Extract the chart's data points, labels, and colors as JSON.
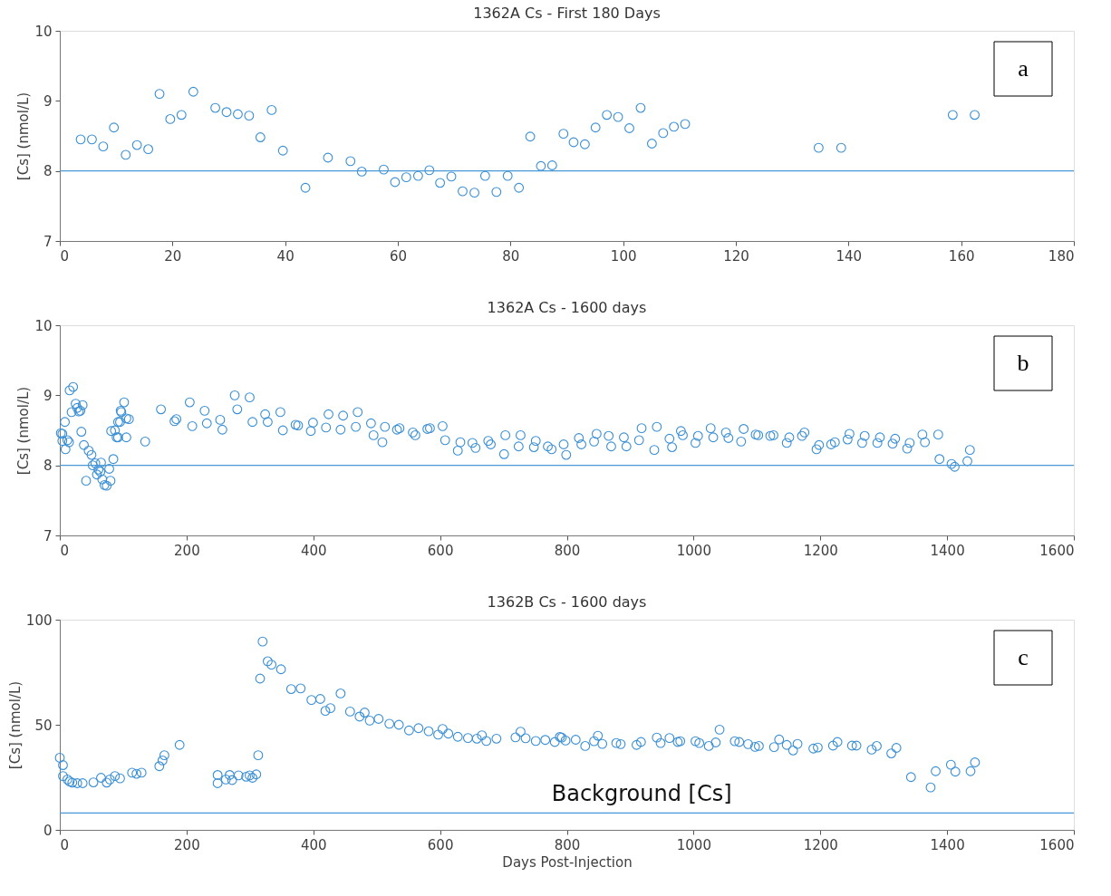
{
  "chart_data": [
    {
      "type": "scatter",
      "title": "1362A Cs - First 180 Days",
      "ylabel": "[Cs] (nmol/L)",
      "annotations": [
        "a"
      ],
      "marker": "circle",
      "grid": false,
      "xlim": [
        0,
        180
      ],
      "xticks": [
        0,
        20,
        40,
        60,
        80,
        100,
        120,
        140,
        160,
        180
      ],
      "ylim": [
        7,
        10
      ],
      "yticks": [
        7,
        8,
        9,
        10
      ],
      "ref_lines": [
        {
          "axis": "y",
          "value": 8,
          "color": "#4a98d6"
        }
      ],
      "series": [
        {
          "color": "#3a8fd4",
          "x": [
            3.7,
            5.7,
            7.7,
            9.6,
            11.7,
            13.7,
            15.7,
            17.7,
            19.6,
            21.6,
            23.7,
            27.6,
            29.6,
            31.6,
            33.6,
            35.6,
            37.6,
            39.6,
            43.6,
            47.6,
            51.6,
            53.6,
            57.5,
            59.5,
            61.5,
            63.6,
            65.6,
            67.5,
            69.5,
            71.5,
            73.6,
            75.5,
            77.5,
            79.5,
            81.5,
            83.5,
            85.4,
            87.4,
            89.4,
            91.2,
            93.2,
            95.1,
            97.1,
            99.1,
            101.1,
            103.1,
            105.1,
            107.1,
            109.0,
            111.0,
            134.7,
            138.7,
            158.5,
            162.4
          ],
          "values": [
            8.45,
            8.45,
            8.35,
            8.62,
            8.23,
            8.37,
            8.31,
            9.1,
            8.74,
            8.8,
            9.13,
            8.9,
            8.84,
            8.81,
            8.79,
            8.48,
            8.87,
            8.29,
            7.76,
            8.19,
            8.14,
            7.99,
            8.02,
            7.84,
            7.91,
            7.93,
            8.01,
            7.83,
            7.92,
            7.71,
            7.69,
            7.93,
            7.7,
            7.93,
            7.76,
            8.49,
            8.07,
            8.08,
            8.53,
            8.41,
            8.38,
            8.62,
            8.8,
            8.77,
            8.61,
            8.9,
            8.39,
            8.54,
            8.63,
            8.67,
            8.33,
            8.33,
            8.8,
            8.8
          ]
        }
      ]
    },
    {
      "type": "scatter",
      "title": "1362A Cs - 1600 days",
      "ylabel": "[Cs] (nmol/L)",
      "annotations": [
        "b"
      ],
      "marker": "circle",
      "grid": false,
      "xlim": [
        0,
        1600
      ],
      "xticks": [
        0,
        200,
        400,
        600,
        800,
        1000,
        1200,
        1400,
        1600
      ],
      "ylim": [
        7,
        10
      ],
      "yticks": [
        7,
        8,
        9,
        10
      ],
      "ref_lines": [
        {
          "axis": "y",
          "value": 8,
          "color": "#4a98d6"
        }
      ],
      "series": [
        {
          "color": "#3a8fd4",
          "x": [
            1.6,
            4,
            8,
            4,
            12,
            9,
            14.5,
            15.5,
            21,
            18.6,
            25,
            27.5,
            30,
            32.6,
            36,
            34,
            38,
            41.5,
            45.6,
            50,
            52,
            56,
            58.5,
            61,
            65,
            64,
            67,
            70.5,
            74,
            78,
            80,
            84.5,
            81,
            87,
            89.6,
            92,
            96,
            101.5,
            97,
            105,
            109,
            105,
            95,
            92,
            134.7,
            159.6,
            181,
            184,
            205,
            209,
            228.5,
            232,
            253,
            256.5,
            276,
            280,
            299.5,
            304,
            324,
            328,
            348,
            352,
            372,
            376,
            399.5,
            396,
            424,
            420,
            447,
            443,
            470,
            467,
            491,
            495,
            513,
            509,
            536,
            532,
            557,
            561,
            584,
            580,
            604,
            608,
            632,
            628,
            651,
            656,
            676,
            680,
            703,
            701,
            727,
            724,
            751,
            748,
            770,
            776,
            795,
            799,
            819,
            823,
            843,
            847,
            866,
            870,
            890,
            894,
            914,
            918,
            938,
            942,
            962,
            966,
            980,
            983,
            1003,
            1007,
            1027,
            1031,
            1051,
            1055,
            1075,
            1079,
            1098,
            1102,
            1121,
            1126,
            1147,
            1151,
            1171,
            1175,
            1194,
            1198,
            1217,
            1223,
            1243,
            1246,
            1266,
            1270,
            1290,
            1294,
            1314,
            1318,
            1337,
            1341,
            1361,
            1365,
            1386,
            1388,
            1407,
            1412,
            1432,
            1436
          ],
          "values": [
            8.46,
            8.45,
            8.62,
            8.35,
            8.36,
            8.23,
            8.33,
            9.07,
            9.12,
            8.76,
            8.88,
            8.82,
            8.77,
            8.78,
            8.86,
            8.48,
            8.29,
            7.78,
            8.21,
            8.15,
            8.0,
            8.03,
            7.87,
            7.94,
            8.04,
            7.91,
            7.8,
            7.72,
            7.71,
            7.95,
            7.78,
            8.09,
            8.49,
            8.5,
            8.4,
            8.62,
            8.78,
            8.9,
            8.76,
            8.67,
            8.66,
            8.4,
            8.62,
            8.4,
            8.34,
            8.8,
            8.63,
            8.66,
            8.9,
            8.56,
            8.78,
            8.6,
            8.65,
            8.51,
            9.0,
            8.8,
            8.97,
            8.62,
            8.73,
            8.62,
            8.76,
            8.5,
            8.58,
            8.57,
            8.61,
            8.49,
            8.73,
            8.54,
            8.71,
            8.51,
            8.76,
            8.55,
            8.6,
            8.43,
            8.55,
            8.33,
            8.53,
            8.51,
            8.47,
            8.43,
            8.53,
            8.52,
            8.56,
            8.36,
            8.33,
            8.21,
            8.32,
            8.25,
            8.35,
            8.3,
            8.43,
            8.16,
            8.43,
            8.27,
            8.35,
            8.26,
            8.27,
            8.23,
            8.3,
            8.15,
            8.39,
            8.3,
            8.34,
            8.45,
            8.42,
            8.27,
            8.4,
            8.27,
            8.36,
            8.53,
            8.22,
            8.55,
            8.38,
            8.26,
            8.49,
            8.43,
            8.32,
            8.42,
            8.53,
            8.4,
            8.47,
            8.39,
            8.34,
            8.52,
            8.44,
            8.43,
            8.42,
            8.43,
            8.32,
            8.4,
            8.42,
            8.47,
            8.23,
            8.29,
            8.3,
            8.33,
            8.37,
            8.45,
            8.32,
            8.42,
            8.32,
            8.4,
            8.31,
            8.38,
            8.24,
            8.32,
            8.44,
            8.33,
            8.44,
            8.09,
            8.02,
            7.98,
            8.06,
            8.22
          ]
        }
      ]
    },
    {
      "type": "scatter",
      "title": "1362B Cs - 1600 days",
      "xlabel": "Days Post-Injection",
      "ylabel": "[Cs] (nmol/L)",
      "annotations": [
        "c"
      ],
      "marker": "circle",
      "grid": false,
      "xlim": [
        0,
        1600
      ],
      "xticks": [
        0,
        200,
        400,
        600,
        800,
        1000,
        1200,
        1400,
        1600
      ],
      "ylim": [
        0,
        100
      ],
      "yticks": [
        0,
        50,
        100
      ],
      "ref_lines": [
        {
          "axis": "y",
          "value": 8,
          "label": "Background [Cs]",
          "color": "#4a98d6"
        }
      ],
      "series": [
        {
          "color": "#3a8fd4",
          "x": [
            0,
            5,
            5,
            12,
            15.5,
            19.7,
            27.5,
            36,
            53,
            65,
            74,
            79,
            87,
            95,
            114,
            121,
            129,
            157,
            162,
            165,
            189,
            249,
            249,
            262,
            268,
            272,
            282,
            294,
            299.5,
            304,
            310,
            313,
            316,
            320,
            328,
            334,
            349,
            365,
            380,
            397,
            411,
            419,
            427,
            443,
            458,
            473,
            481,
            489,
            503,
            520,
            535,
            551,
            566,
            582,
            597,
            604,
            613,
            628,
            644,
            658,
            666,
            673,
            689,
            719,
            727,
            735,
            751,
            766,
            781,
            789,
            792,
            798,
            814,
            829,
            843,
            849,
            856,
            878,
            885,
            910,
            917,
            942,
            948,
            962,
            975,
            979,
            1003,
            1009,
            1024,
            1035,
            1041,
            1065,
            1072,
            1086,
            1097,
            1103,
            1127,
            1135,
            1147,
            1157,
            1164,
            1189,
            1196,
            1220,
            1227,
            1250,
            1257,
            1281,
            1289,
            1312,
            1320,
            1343,
            1374,
            1382,
            1406,
            1413,
            1437,
            1444
          ],
          "values": [
            34.3,
            30.8,
            25.6,
            24,
            23,
            22.5,
            22.2,
            22.2,
            22.6,
            24.8,
            22.5,
            24,
            25.6,
            24.5,
            27.2,
            26.7,
            27.2,
            30.3,
            33,
            35.5,
            40.4,
            26.1,
            22.2,
            24,
            26.1,
            23.7,
            25.9,
            25.3,
            25.9,
            24.8,
            26.4,
            35.5,
            72,
            89.6,
            80.2,
            78.6,
            76.4,
            67,
            67.3,
            61.8,
            62.3,
            56.6,
            57.9,
            64.9,
            56.3,
            53.9,
            55.8,
            52,
            52.8,
            50.5,
            50,
            47.3,
            48.4,
            46.9,
            45.3,
            48,
            45.8,
            44.3,
            43.7,
            43.4,
            45,
            42.3,
            43.4,
            44,
            46.7,
            43.6,
            42.3,
            42.8,
            41.8,
            44.2,
            43.9,
            42.5,
            42.9,
            39.9,
            42.2,
            44.8,
            40.9,
            41.3,
            40.8,
            40.4,
            41.8,
            43.9,
            41.3,
            43.7,
            41.8,
            42.2,
            42.2,
            41.3,
            39.9,
            41.6,
            47.7,
            42.2,
            41.8,
            40.8,
            39.5,
            39.9,
            39.4,
            43,
            40.4,
            37.8,
            40.9,
            38.7,
            39.2,
            40.1,
            41.8,
            40.1,
            40.1,
            38.2,
            39.9,
            36.4,
            39,
            25.1,
            20.2,
            27.9,
            31,
            27.7,
            27.9,
            32.1
          ]
        }
      ]
    }
  ]
}
